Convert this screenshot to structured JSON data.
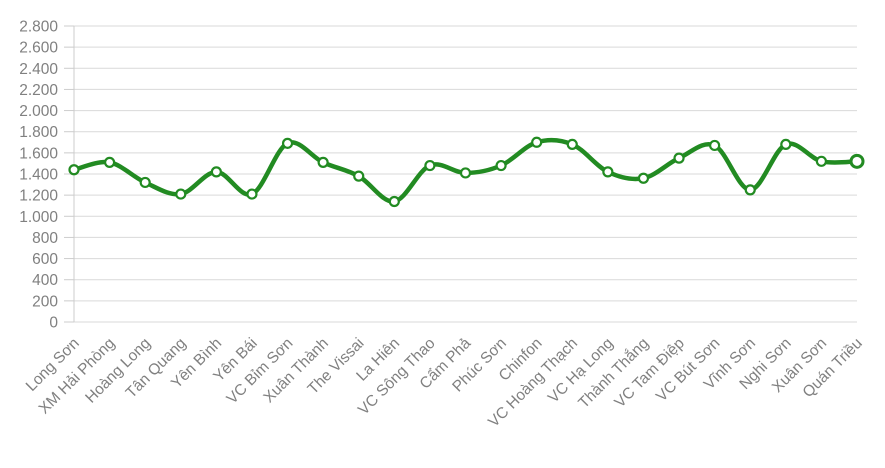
{
  "chart_data": {
    "type": "line",
    "title": "",
    "xlabel": "",
    "ylabel": "",
    "categories": [
      "Long Sơn",
      "XM Hải Phòng",
      "Hoàng Long",
      "Tân Quang",
      "Yên Bình",
      "Yên Bái",
      "VC Bỉm Sơn",
      "Xuân Thành",
      "The Vissai",
      "La Hiên",
      "VC Sông Thao",
      "Cẩm Phả",
      "Phúc Sơn",
      "Chinfon",
      "VC Hoàng Thạch",
      "VC Hạ Long",
      "Thành Thắng",
      "VC Tam Điệp",
      "VC Bút Sơn",
      "Vĩnh Sơn",
      "Nghi Sơn",
      "Xuân Sơn",
      "Quán Triều"
    ],
    "values": [
      1440,
      1510,
      1320,
      1210,
      1420,
      1210,
      1690,
      1510,
      1380,
      1140,
      1480,
      1410,
      1480,
      1700,
      1680,
      1420,
      1360,
      1550,
      1670,
      1250,
      1680,
      1520,
      1520
    ],
    "ylim": [
      0,
      2800
    ],
    "y_tick_step": 200,
    "y_tick_labels": [
      "0",
      "200",
      "400",
      "600",
      "800",
      "1.000",
      "1.200",
      "1.400",
      "1.600",
      "1.800",
      "2.000",
      "2.200",
      "2.400",
      "2.600",
      "2.800"
    ],
    "grid": "horizontal",
    "legend": "none",
    "smoothed": true,
    "colors": {
      "line": "#228B22",
      "marker_fill": "#ffffff",
      "axis_text": "#808080",
      "gridline": "#d9d9d9",
      "axis_line": "#cccccc"
    }
  }
}
